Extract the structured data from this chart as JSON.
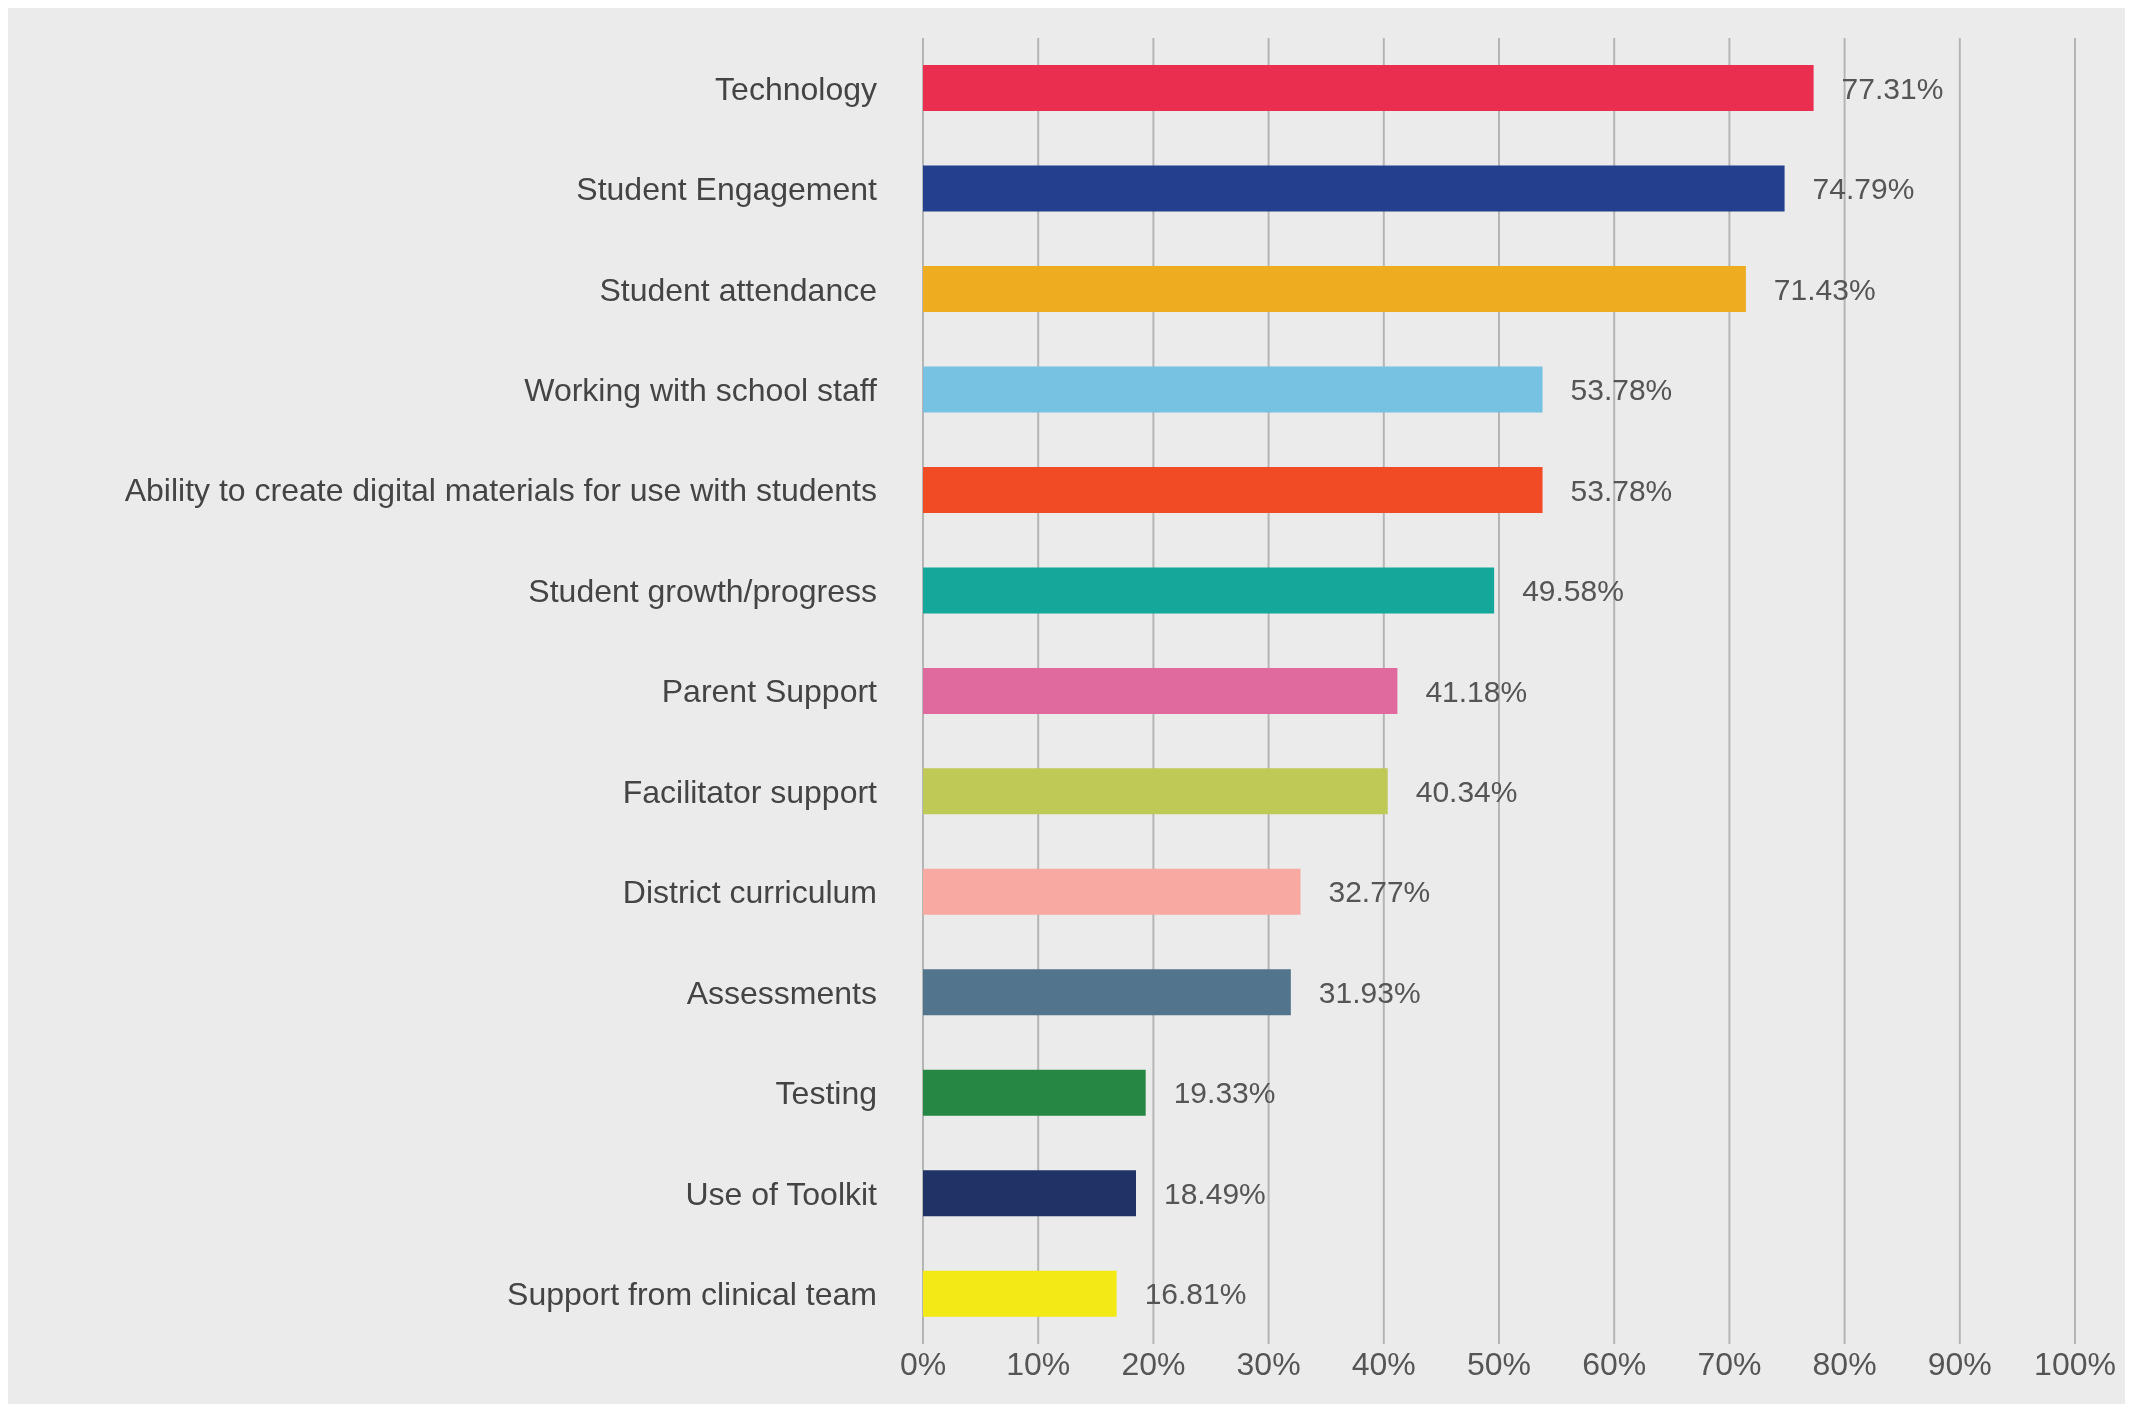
{
  "chart_data": {
    "type": "bar",
    "orientation": "horizontal",
    "categories": [
      "Technology",
      "Student Engagement",
      "Student attendance",
      "Working with school staff",
      "Ability to create digital materials for use with students",
      "Student growth/progress",
      "Parent Support",
      "Facilitator support",
      "District curriculum",
      "Assessments",
      "Testing",
      "Use of Toolkit",
      "Support from clinical team"
    ],
    "values": [
      77.31,
      74.79,
      71.43,
      53.78,
      53.78,
      49.58,
      41.18,
      40.34,
      32.77,
      31.93,
      19.33,
      18.49,
      16.81
    ],
    "colors": [
      "#ea2e50",
      "#233f8e",
      "#eeac20",
      "#77c2e2",
      "#f04b24",
      "#15a79a",
      "#e06a9e",
      "#bfc956",
      "#f8aaa2",
      "#52748c",
      "#258743",
      "#213266",
      "#f3e916"
    ],
    "value_labels": [
      "77.31%",
      "74.79%",
      "71.43%",
      "53.78%",
      "53.78%",
      "49.58%",
      "41.18%",
      "40.34%",
      "32.77%",
      "31.93%",
      "19.33%",
      "18.49%",
      "16.81%"
    ],
    "xlim": [
      0,
      100
    ],
    "xticks": [
      {
        "value": 0,
        "label": "0%"
      },
      {
        "value": 10,
        "label": "10%"
      },
      {
        "value": 20,
        "label": "20%"
      },
      {
        "value": 30,
        "label": "30%"
      },
      {
        "value": 40,
        "label": "40%"
      },
      {
        "value": 50,
        "label": "50%"
      },
      {
        "value": 60,
        "label": "60%"
      },
      {
        "value": 70,
        "label": "70%"
      },
      {
        "value": 80,
        "label": "80%"
      },
      {
        "value": 90,
        "label": "90%"
      },
      {
        "value": 100,
        "label": "100%"
      }
    ],
    "grid": "x",
    "legend": false
  }
}
